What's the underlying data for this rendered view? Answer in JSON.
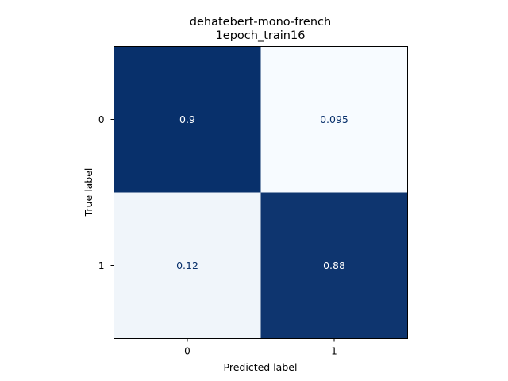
{
  "chart_data": {
    "type": "heatmap",
    "title": [
      "dehatebert-mono-french",
      "1epoch_train16"
    ],
    "xlabel": "Predicted label",
    "ylabel": "True label",
    "x_categories": [
      "0",
      "1"
    ],
    "y_categories": [
      "0",
      "1"
    ],
    "values": [
      [
        0.9,
        0.095
      ],
      [
        0.12,
        0.88
      ]
    ],
    "value_labels": [
      [
        "0.9",
        "0.095"
      ],
      [
        "0.12",
        "0.88"
      ]
    ],
    "colormap": "Blues",
    "colors": {
      "high": "#08306b",
      "low": "#f7fbff"
    }
  }
}
